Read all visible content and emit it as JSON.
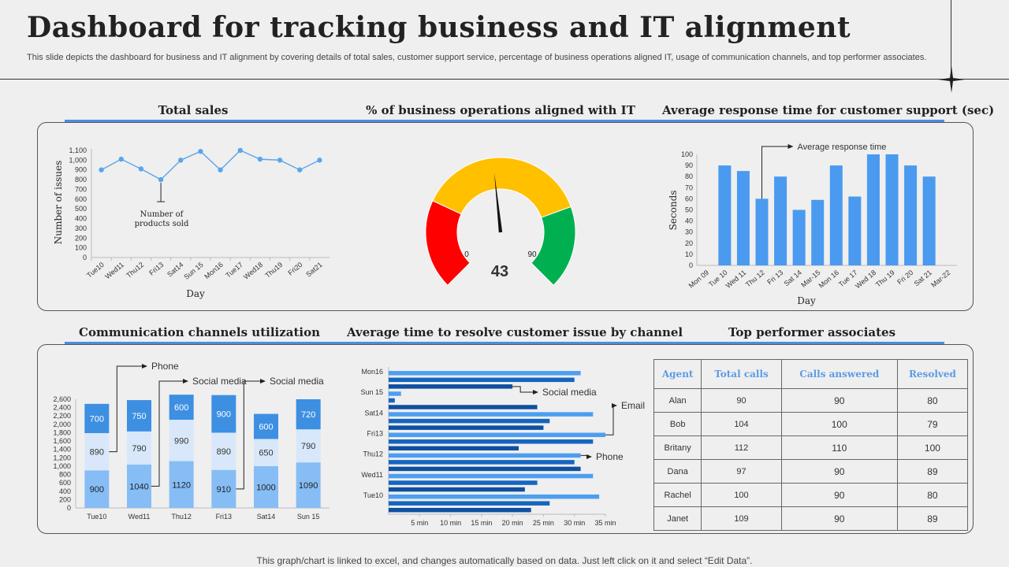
{
  "header": {
    "title": "Dashboard for tracking business and IT alignment",
    "subtitle": "This slide depicts the dashboard for business and IT alignment by covering details of total sales, customer support service, percentage of business operations aligned IT, usage of communication channels, and top performer associates."
  },
  "sections": {
    "total_sales": "Total sales",
    "operations": "% of business operations aligned with IT",
    "response_time": "Average response time for customer support (sec)",
    "channels": "Communication channels utilization",
    "resolve_time": "Average time to resolve customer issue by channel",
    "top_performers": "Top performer associates"
  },
  "footer": "This graph/chart is linked to excel,  and changes automatically based on data. Just left click on it and select “Edit Data”.",
  "colors": {
    "accent": "#4a8fe0",
    "bar": "#4a9af0",
    "gauge_red": "#ff0000",
    "gauge_yellow": "#ffc000",
    "gauge_green": "#00b050"
  },
  "chart_data": [
    {
      "type": "line",
      "categories": [
        "Tue10",
        "Wed11",
        "Thu12",
        "Fri13",
        "Sat14",
        "Sun 15",
        "Mon16",
        "Tue17",
        "Wed18",
        "Thu19",
        "Fri20",
        "Sat21"
      ],
      "values": [
        900,
        1010,
        910,
        800,
        1000,
        1090,
        900,
        1100,
        1010,
        1000,
        900,
        1000
      ],
      "xlabel": "Day",
      "ylabel": "Number of issues",
      "ylim": [
        0,
        1100
      ],
      "yticks": [
        "0",
        "100",
        "200",
        "300",
        "400",
        "500",
        "600",
        "700",
        "800",
        "900",
        "1,000",
        "1,100"
      ],
      "annotation": "Number of products sold"
    },
    {
      "type": "gauge",
      "value": 43,
      "min": 0,
      "max": 90,
      "min_label": "0",
      "max_label": "90",
      "value_label": "43"
    },
    {
      "type": "bar",
      "categories": [
        "Mon 09",
        "Tue 10",
        "Wed 11",
        "Thu 12",
        "Fri 13",
        "Sat 14",
        "Mar-15",
        "Mon 16",
        "Tue 17",
        "Wed 18",
        "Thu 19",
        "Fri 20",
        "Sat 21",
        "Mar-22"
      ],
      "values": [
        null,
        90,
        85,
        60,
        80,
        50,
        59,
        90,
        62,
        100,
        100,
        90,
        80,
        null
      ],
      "xlabel": "Day",
      "ylabel": "Seconds",
      "ylim": [
        0,
        100
      ],
      "yticks": [
        "0",
        "10",
        "20",
        "30",
        "40",
        "50",
        "60",
        "70",
        "80",
        "90",
        "100"
      ],
      "annotation": "Average response time"
    },
    {
      "type": "bar",
      "stacked": true,
      "categories": [
        "Tue10",
        "Wed11",
        "Thu12",
        "Fri13",
        "Sat14",
        "Sun 15"
      ],
      "series": [
        {
          "name": "Social media",
          "values": [
            900,
            1040,
            1120,
            910,
            1000,
            1090
          ]
        },
        {
          "name": "Phone",
          "values": [
            890,
            790,
            990,
            890,
            650,
            790
          ]
        },
        {
          "name": "Email",
          "values": [
            700,
            750,
            600,
            900,
            600,
            720
          ]
        }
      ],
      "ylim": [
        0,
        2600
      ],
      "yticks": [
        "0",
        "200",
        "400",
        "600",
        "800",
        "1,000",
        "1,200",
        "1,400",
        "1,600",
        "1,800",
        "2,000",
        "2,200",
        "2,400",
        "2,600"
      ]
    },
    {
      "type": "bar",
      "orientation": "horizontal",
      "categories": [
        "Mon16",
        "Sun 15",
        "Sat14",
        "Fri13",
        "Thu12",
        "Wed11",
        "Tue10"
      ],
      "series": [
        {
          "name": "Email",
          "values": [
            31,
            2,
            33,
            35,
            31,
            33,
            34
          ]
        },
        {
          "name": "Phone",
          "values": [
            30,
            1,
            26,
            33,
            30,
            24,
            26
          ]
        },
        {
          "name": "Social media",
          "values": [
            20,
            24,
            25,
            21,
            31,
            22,
            23
          ]
        }
      ],
      "xlim": [
        0,
        35
      ],
      "xticks": [
        "5 min",
        "10 min",
        "15 min",
        "20 min",
        "25 min",
        "30 min",
        "35 min"
      ]
    },
    {
      "type": "table",
      "columns": [
        "Agent",
        "Total calls",
        "Calls answered",
        "Resolved"
      ],
      "rows": [
        [
          "Alan",
          "90",
          "90",
          "80"
        ],
        [
          "Bob",
          "104",
          "100",
          "79"
        ],
        [
          "Britany",
          "112",
          "110",
          "100"
        ],
        [
          "Dana",
          "97",
          "90",
          "89"
        ],
        [
          "Rachel",
          "100",
          "90",
          "80"
        ],
        [
          "Janet",
          "109",
          "90",
          "89"
        ]
      ]
    }
  ]
}
